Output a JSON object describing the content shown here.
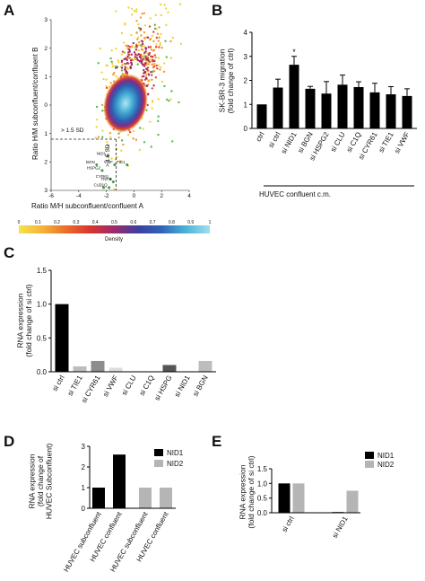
{
  "panels": {
    "A": {
      "label": "A",
      "xlabel": "Ratio M/H subconfluent/confluent A",
      "ylabel": "Ratio H/M subconfluent/confluent B",
      "xticks": [
        "-6",
        "-4",
        "-2",
        "0",
        "2",
        "4"
      ],
      "yticks": [
        "3",
        "2",
        "1",
        "0",
        "-1",
        "-2",
        "-3"
      ],
      "sd_h": "> 1.5 SD",
      "sd_v": "> 1.5 SD",
      "gene_labels": [
        "NID1",
        "BGN",
        "HSPG2",
        "VWF",
        "TIE1",
        "CYR61",
        "C1Q",
        "CLU",
        "TNFS"
      ],
      "colorbar": {
        "ticks": [
          "0",
          "0.1",
          "0.2",
          "0.3",
          "0.4",
          "0.5",
          "0.6",
          "0.7",
          "0.8",
          "0.9",
          "1"
        ],
        "label": "Density",
        "colors": [
          "#f5e44a",
          "#f4b23a",
          "#ec6b2a",
          "#d9342f",
          "#9c2a6b",
          "#3c3fa0",
          "#2f66b8",
          "#4db4d6",
          "#9fe0f0"
        ]
      }
    },
    "B": {
      "label": "B",
      "group_label": "HUVEC confluent c.m.",
      "star": "*",
      "bar_color": "#000000"
    },
    "C": {
      "label": "C",
      "colors": {
        "black": "#000000",
        "dark": "#555555",
        "mid": "#8c8c8c",
        "light": "#bdbdbd",
        "pale": "#dddddd"
      }
    },
    "D": {
      "label": "D",
      "legend": [
        "NID1",
        "NID2"
      ],
      "colors": [
        "#000000",
        "#b5b5b5"
      ]
    },
    "E": {
      "label": "E",
      "legend": [
        "NID1",
        "NID2"
      ],
      "colors": [
        "#000000",
        "#b5b5b5"
      ]
    }
  },
  "chart_data": [
    {
      "id": "A",
      "type": "scatter",
      "xlabel": "Ratio M/H subconfluent/confluent A",
      "ylabel": "Ratio H/M subconfluent/confluent B",
      "xlim": [
        -6,
        4
      ],
      "ylim": [
        -3,
        3
      ],
      "legend": "bottom colorbar",
      "points": [
        {
          "label": "NID1",
          "x": -1.9,
          "y": -1.8
        },
        {
          "label": "BGN",
          "x": -2.7,
          "y": -2.1
        },
        {
          "label": "HSPG2",
          "x": -2.3,
          "y": -2.3
        },
        {
          "label": "VWF",
          "x": -1.4,
          "y": -2.1
        },
        {
          "label": "TIE1",
          "x": -0.5,
          "y": -2.1
        },
        {
          "label": "CYR61",
          "x": -1.7,
          "y": -2.6
        },
        {
          "label": "C1Q",
          "x": -1.8,
          "y": -2.9
        },
        {
          "label": "CLU",
          "x": -2.2,
          "y": -2.9
        },
        {
          "label": "TNFS",
          "x": -1.5,
          "y": -2.7
        }
      ]
    },
    {
      "id": "B",
      "type": "bar",
      "categories": [
        "ctrl",
        "si ctrl",
        "si NID1",
        "si BGN",
        "si HSPG2",
        "si CLU",
        "si C1Q",
        "si CYR61",
        "si TIE1",
        "si VWF"
      ],
      "values": [
        1.0,
        1.7,
        2.65,
        1.65,
        1.45,
        1.82,
        1.72,
        1.5,
        1.42,
        1.35
      ],
      "errors": [
        0,
        0.35,
        0.35,
        0.1,
        0.5,
        0.4,
        0.22,
        0.38,
        0.32,
        0.3
      ],
      "ylabel": "SK-BR-3 migration (fold change of ctrl)",
      "ylim": [
        0,
        4
      ],
      "yticks": [
        0,
        1,
        2,
        3,
        4
      ]
    },
    {
      "id": "C",
      "type": "bar",
      "categories": [
        "si ctrl",
        "si TIE1",
        "si CYR61",
        "si VWF",
        "si CLU",
        "si C1Q",
        "si HSPG",
        "si NID1",
        "si BGN"
      ],
      "values": [
        1.0,
        0.08,
        0.16,
        0.06,
        0.0,
        0.0,
        0.1,
        0.0,
        0.16
      ],
      "ylabel": "RNA expression (fold change of si ctrl)",
      "ylim": [
        0,
        1.5
      ],
      "yticks": [
        "0.0",
        "0.5",
        "1.0",
        "1.5"
      ]
    },
    {
      "id": "D",
      "type": "bar",
      "categories": [
        "HUVEC subconfluent",
        "HUVEC confluent",
        "HUVEC subconfluent",
        "HUVEC confluent"
      ],
      "series": [
        {
          "name": "NID1",
          "values": [
            1.0,
            2.6,
            null,
            null
          ]
        },
        {
          "name": "NID2",
          "values": [
            null,
            null,
            1.0,
            1.0
          ]
        }
      ],
      "ylabel": "RNA expression (fold change of HUVEC Subconfluent)",
      "ylim": [
        0,
        3
      ],
      "yticks": [
        0,
        1,
        2,
        3
      ],
      "legend": "right"
    },
    {
      "id": "E",
      "type": "bar",
      "categories": [
        "si ctrl",
        "si NID1"
      ],
      "series": [
        {
          "name": "NID1",
          "values": [
            1.0,
            0.02
          ]
        },
        {
          "name": "NID2",
          "values": [
            1.0,
            0.75
          ]
        }
      ],
      "ylabel": "RNA expression (fold change of si ctrl)",
      "ylim": [
        0,
        1.5
      ],
      "yticks": [
        "0.0",
        "0.5",
        "1.0",
        "1.5"
      ],
      "legend": "right"
    }
  ]
}
